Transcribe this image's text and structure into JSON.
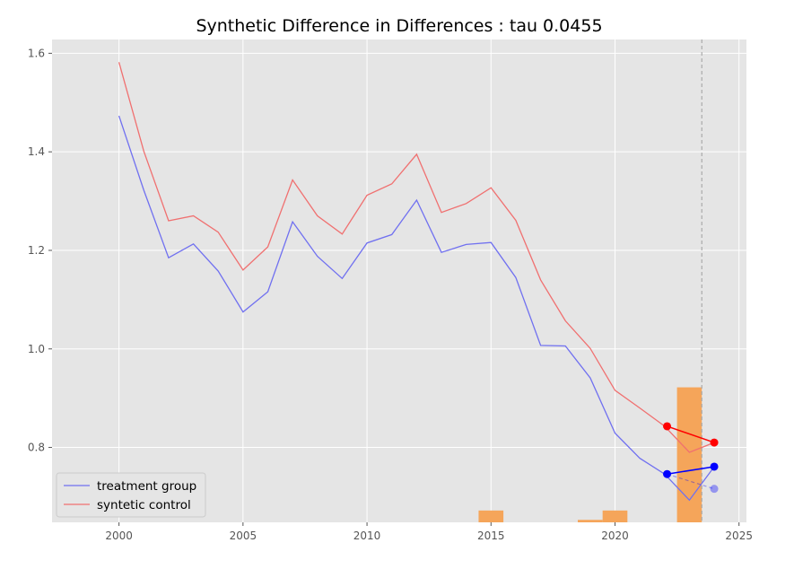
{
  "chart_data": {
    "type": "line",
    "title": "Synthetic Difference in Differences : tau 0.0455",
    "xlabel": "",
    "ylabel": "",
    "xlim": [
      1997.3,
      2025.3
    ],
    "ylim": [
      0.648,
      1.628
    ],
    "grid": true,
    "legend_position": "lower-left",
    "x_ticks": [
      2000,
      2005,
      2010,
      2015,
      2020,
      2025
    ],
    "x_tick_labels": [
      "2000",
      "2005",
      "2010",
      "2015",
      "2020",
      "2025"
    ],
    "y_ticks": [
      0.8,
      1.0,
      1.2,
      1.4,
      1.6
    ],
    "y_tick_labels": [
      "0.8",
      "1.0",
      "1.2",
      "1.4",
      "1.6"
    ],
    "x": [
      2000,
      2001,
      2002,
      2003,
      2004,
      2005,
      2006,
      2007,
      2008,
      2009,
      2010,
      2011,
      2012,
      2013,
      2014,
      2015,
      2016,
      2017,
      2018,
      2019,
      2020,
      2021,
      2022,
      2023,
      2024
    ],
    "series": [
      {
        "name": "treatment group",
        "color": "#7070f0",
        "values": [
          1.473,
          1.322,
          1.185,
          1.213,
          1.158,
          1.075,
          1.116,
          1.258,
          1.188,
          1.143,
          1.215,
          1.232,
          1.302,
          1.196,
          1.212,
          1.216,
          1.145,
          1.007,
          1.006,
          0.941,
          0.829,
          0.778,
          0.746,
          0.693,
          0.761
        ]
      },
      {
        "name": "syntetic control",
        "color": "#f07070",
        "values": [
          1.582,
          1.401,
          1.26,
          1.27,
          1.237,
          1.16,
          1.207,
          1.343,
          1.27,
          1.233,
          1.312,
          1.335,
          1.395,
          1.277,
          1.295,
          1.327,
          1.261,
          1.14,
          1.057,
          1.001,
          0.916,
          0.88,
          0.843,
          0.79,
          0.81
        ]
      }
    ],
    "markers": [
      {
        "color": "#ff0000",
        "x": [
          2022.1,
          2024.0
        ],
        "y": [
          0.843,
          0.81
        ]
      },
      {
        "color": "#0000ff",
        "x": [
          2022.1,
          2024.0
        ],
        "y": [
          0.746,
          0.761
        ]
      }
    ],
    "counterfactual": {
      "color": "#0000ff",
      "x": [
        2022.1,
        2024.0
      ],
      "y": [
        0.746,
        0.716
      ]
    },
    "weight_bars": {
      "color": "#f5a55a",
      "bars": [
        {
          "x0": 2014.5,
          "x1": 2015.5,
          "value": 0.672
        },
        {
          "x0": 2018.5,
          "x1": 2019.5,
          "value": 0.653
        },
        {
          "x0": 2019.5,
          "x1": 2020.5,
          "value": 0.672
        },
        {
          "x0": 2022.5,
          "x1": 2023.5,
          "value": 0.922
        }
      ]
    },
    "treatment_start_line": {
      "x": 2023.5,
      "color": "#aaaaaa"
    }
  }
}
